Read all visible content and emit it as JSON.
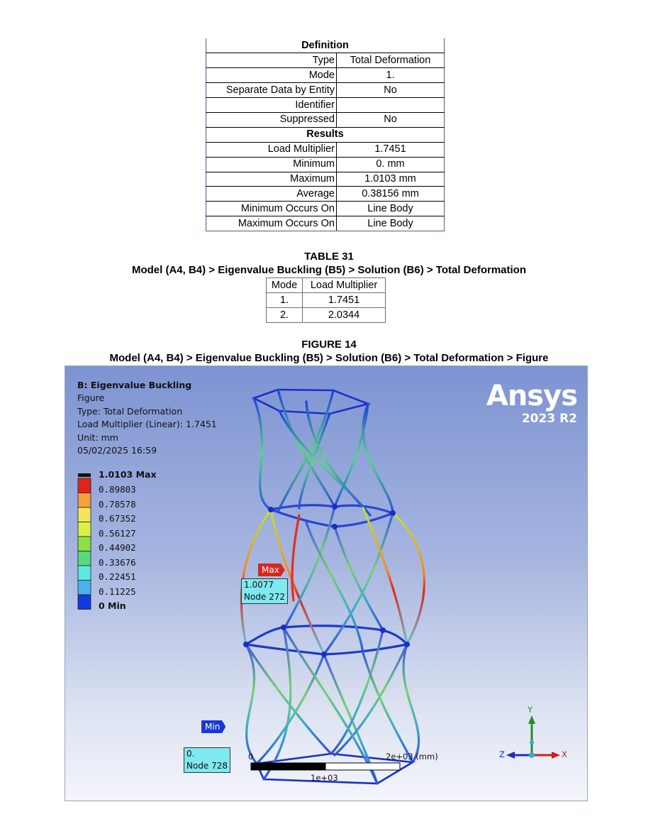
{
  "definition": {
    "header": "Definition",
    "rows": [
      {
        "label": "Type",
        "value": "Total Deformation"
      },
      {
        "label": "Mode",
        "value": "1."
      },
      {
        "label": "Separate Data by Entity",
        "value": "No"
      },
      {
        "label": "Identifier",
        "value": ""
      },
      {
        "label": "Suppressed",
        "value": "No"
      }
    ]
  },
  "results": {
    "header": "Results",
    "rows": [
      {
        "label": "Load Multiplier",
        "value": "1.7451"
      },
      {
        "label": "Minimum",
        "value": "0. mm"
      },
      {
        "label": "Maximum",
        "value": "1.0103 mm"
      },
      {
        "label": "Average",
        "value": "0.38156 mm"
      },
      {
        "label": "Minimum Occurs On",
        "value": "Line Body"
      },
      {
        "label": "Maximum Occurs On",
        "value": "Line Body"
      }
    ]
  },
  "table31": {
    "number": "TABLE 31",
    "title": "Model (A4, B4) > Eigenvalue Buckling (B5) > Solution (B6) > Total Deformation",
    "headers": [
      "Mode",
      "Load Multiplier"
    ],
    "rows": [
      [
        "1.",
        "1.7451"
      ],
      [
        "2.",
        "2.0344"
      ]
    ]
  },
  "figure14": {
    "number": "FIGURE 14",
    "title": "Model (A4, B4) > Eigenvalue Buckling (B5) > Solution (B6) > Total Deformation > Figure",
    "info": {
      "title": "B: Eigenvalue Buckling",
      "lines": [
        "Figure",
        "Type: Total Deformation",
        "Load Multiplier (Linear): 1.7451",
        "Unit: mm",
        "05/02/2025 16:59"
      ]
    },
    "brand": {
      "name": "Ansys",
      "version": "2023 R2"
    },
    "legend": {
      "max_label": "1.0103 Max",
      "levels": [
        "0.89803",
        "0.78578",
        "0.67352",
        "0.56127",
        "0.44902",
        "0.33676",
        "0.22451",
        "0.11225"
      ],
      "min_label": "0 Min",
      "colors": [
        "#e0241c",
        "#f5a03a",
        "#f4e55a",
        "#d8f24a",
        "#8ce04a",
        "#58d880",
        "#60e8e0",
        "#4ab2e8",
        "#1438e0"
      ]
    },
    "max_flag": "Max",
    "min_flag": "Min",
    "max_probe": {
      "value": "1.0077",
      "node": "Node 272"
    },
    "min_probe": {
      "value": "0.",
      "node": "Node 728"
    },
    "scale": {
      "start": "0",
      "end": "2e+03 (mm)",
      "mid": "1e+03"
    },
    "triad": {
      "x": "X",
      "y": "Y",
      "z": "Z"
    }
  }
}
